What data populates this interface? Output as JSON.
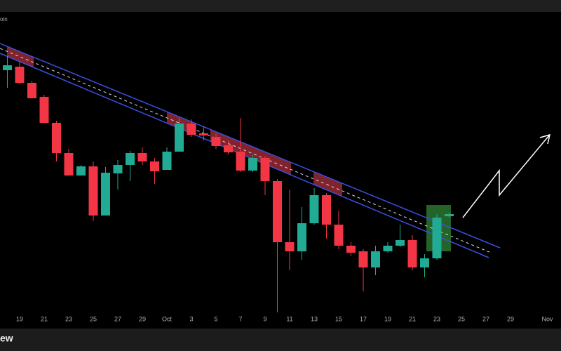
{
  "chart_data": {
    "type": "candlestick",
    "symbol": "oin",
    "watermark": "ew",
    "categories": [
      null,
      "19",
      null,
      "21",
      null,
      "23",
      null,
      "25",
      null,
      "27",
      null,
      "29",
      null,
      "Oct",
      null,
      "3",
      null,
      "5",
      null,
      "7",
      null,
      "9",
      null,
      "11",
      null,
      "13",
      null,
      "15",
      null,
      "17",
      null,
      "19",
      null,
      "21",
      null,
      "23",
      null,
      "25",
      null,
      "27",
      null,
      "29",
      null,
      null,
      "Nov"
    ],
    "open": [
      380,
      385,
      362,
      342,
      305,
      262,
      230,
      243,
      173,
      233,
      245,
      262,
      250,
      238,
      264,
      304,
      290,
      285,
      273,
      264,
      237,
      255,
      222,
      135,
      122,
      162,
      202,
      160,
      130,
      122,
      99,
      122,
      130,
      138,
      99,
      112,
      172,
      null,
      null,
      null,
      null,
      null,
      null,
      null,
      null
    ],
    "high": [
      400,
      392,
      365,
      345,
      308,
      268,
      245,
      250,
      242,
      252,
      265,
      270,
      255,
      270,
      312,
      310,
      300,
      290,
      280,
      312,
      260,
      258,
      225,
      210,
      185,
      212,
      205,
      180,
      135,
      125,
      130,
      135,
      160,
      145,
      118,
      175,
      177,
      null,
      null,
      null,
      null,
      null,
      null,
      null,
      null
    ],
    "low": [
      355,
      360,
      340,
      305,
      250,
      230,
      230,
      165,
      173,
      210,
      222,
      245,
      218,
      238,
      264,
      285,
      280,
      268,
      260,
      235,
      235,
      202,
      35,
      95,
      110,
      160,
      140,
      125,
      115,
      65,
      88,
      120,
      128,
      95,
      85,
      110,
      170,
      null,
      null,
      null,
      null,
      null,
      null,
      null,
      null
    ],
    "close": [
      387,
      362,
      340,
      305,
      262,
      230,
      243,
      173,
      234,
      245,
      262,
      250,
      236,
      264,
      304,
      288,
      287,
      272,
      263,
      237,
      255,
      222,
      135,
      122,
      162,
      202,
      160,
      130,
      120,
      99,
      122,
      130,
      138,
      99,
      112,
      170,
      175,
      null,
      null,
      null,
      null,
      null,
      null,
      null,
      null
    ],
    "ylim": [
      20,
      460
    ],
    "up_color": "#22ab94",
    "down_color": "#f23645"
  }
}
